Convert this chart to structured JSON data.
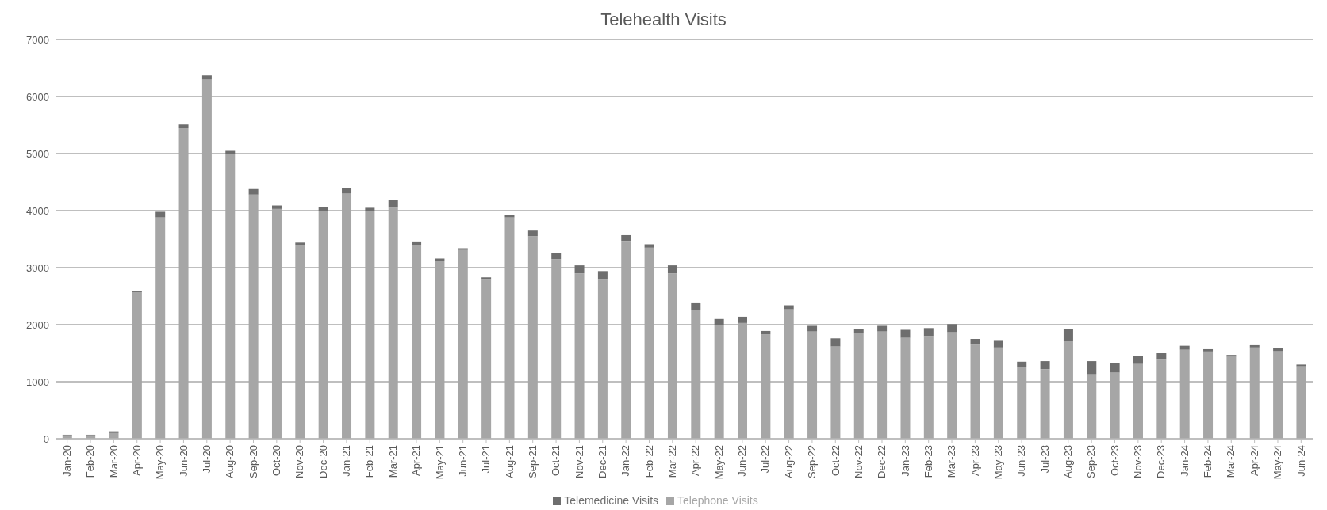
{
  "chart_data": {
    "type": "bar",
    "title": "Telehealth Visits",
    "stacked": true,
    "grid": "y",
    "legend": "bottom",
    "categories": [
      "Jan-20",
      "Feb-20",
      "Mar-20",
      "Apr-20",
      "May-20",
      "Jun-20",
      "Jul-20",
      "Aug-20",
      "Sep-20",
      "Oct-20",
      "Nov-20",
      "Dec-20",
      "Jan-21",
      "Feb-21",
      "Mar-21",
      "Apr-21",
      "May-21",
      "Jun-21",
      "Jul-21",
      "Aug-21",
      "Sep-21",
      "Oct-21",
      "Nov-21",
      "Dec-21",
      "Jan-22",
      "Feb-22",
      "Mar-22",
      "Apr-22",
      "May-22",
      "Jun-22",
      "Jul-22",
      "Aug-22",
      "Sep-22",
      "Oct-22",
      "Nov-22",
      "Dec-22",
      "Jan-23",
      "Feb-23",
      "Mar-23",
      "Apr-23",
      "May-23",
      "Jun-23",
      "Jul-23",
      "Aug-23",
      "Sep-23",
      "Oct-23",
      "Nov-23",
      "Dec-23",
      "Jan-24",
      "Feb-24",
      "Mar-24",
      "Apr-24",
      "May-24",
      "Jun-24"
    ],
    "series": [
      {
        "name": "Telephone Visits",
        "color": "#a6a6a6",
        "values": [
          60,
          60,
          100,
          2570,
          3880,
          5450,
          6300,
          5000,
          4280,
          4030,
          3400,
          4000,
          4300,
          4000,
          4050,
          3400,
          3120,
          3310,
          2800,
          3880,
          3550,
          3150,
          2900,
          2800,
          3470,
          3350,
          2900,
          2250,
          2000,
          2030,
          1830,
          2270,
          1880,
          1620,
          1850,
          1880,
          1770,
          1800,
          1870,
          1650,
          1600,
          1250,
          1220,
          1720,
          1130,
          1160,
          1310,
          1400,
          1560,
          1530,
          1440,
          1600,
          1540,
          1270
        ]
      },
      {
        "name": "Telemedicine Visits",
        "color": "#6e6e6e",
        "values": [
          10,
          10,
          30,
          20,
          100,
          60,
          70,
          50,
          100,
          60,
          40,
          60,
          100,
          50,
          130,
          60,
          40,
          30,
          30,
          50,
          100,
          100,
          140,
          140,
          100,
          60,
          140,
          140,
          100,
          110,
          60,
          70,
          100,
          140,
          70,
          100,
          140,
          140,
          140,
          100,
          130,
          100,
          140,
          200,
          230,
          170,
          140,
          100,
          70,
          40,
          30,
          40,
          50,
          30
        ]
      }
    ],
    "ylim": [
      0,
      7000
    ],
    "yticks": [
      0,
      1000,
      2000,
      3000,
      4000,
      5000,
      6000,
      7000
    ]
  }
}
